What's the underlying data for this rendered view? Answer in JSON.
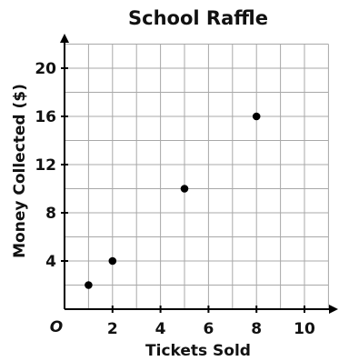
{
  "chart_data": {
    "type": "scatter",
    "title": "School Raffle",
    "xlabel": "Tickets Sold",
    "ylabel": "Money Collected ($)",
    "origin_label": "O",
    "xlim": [
      0,
      11
    ],
    "ylim": [
      0,
      22
    ],
    "x_grid_step": 1,
    "y_grid_step": 2,
    "x_ticks": [
      2,
      4,
      6,
      8,
      10
    ],
    "y_ticks": [
      4,
      8,
      12,
      16,
      20
    ],
    "grid": true,
    "points": [
      {
        "x": 1,
        "y": 2
      },
      {
        "x": 2,
        "y": 4
      },
      {
        "x": 5,
        "y": 10
      },
      {
        "x": 8,
        "y": 16
      }
    ]
  }
}
